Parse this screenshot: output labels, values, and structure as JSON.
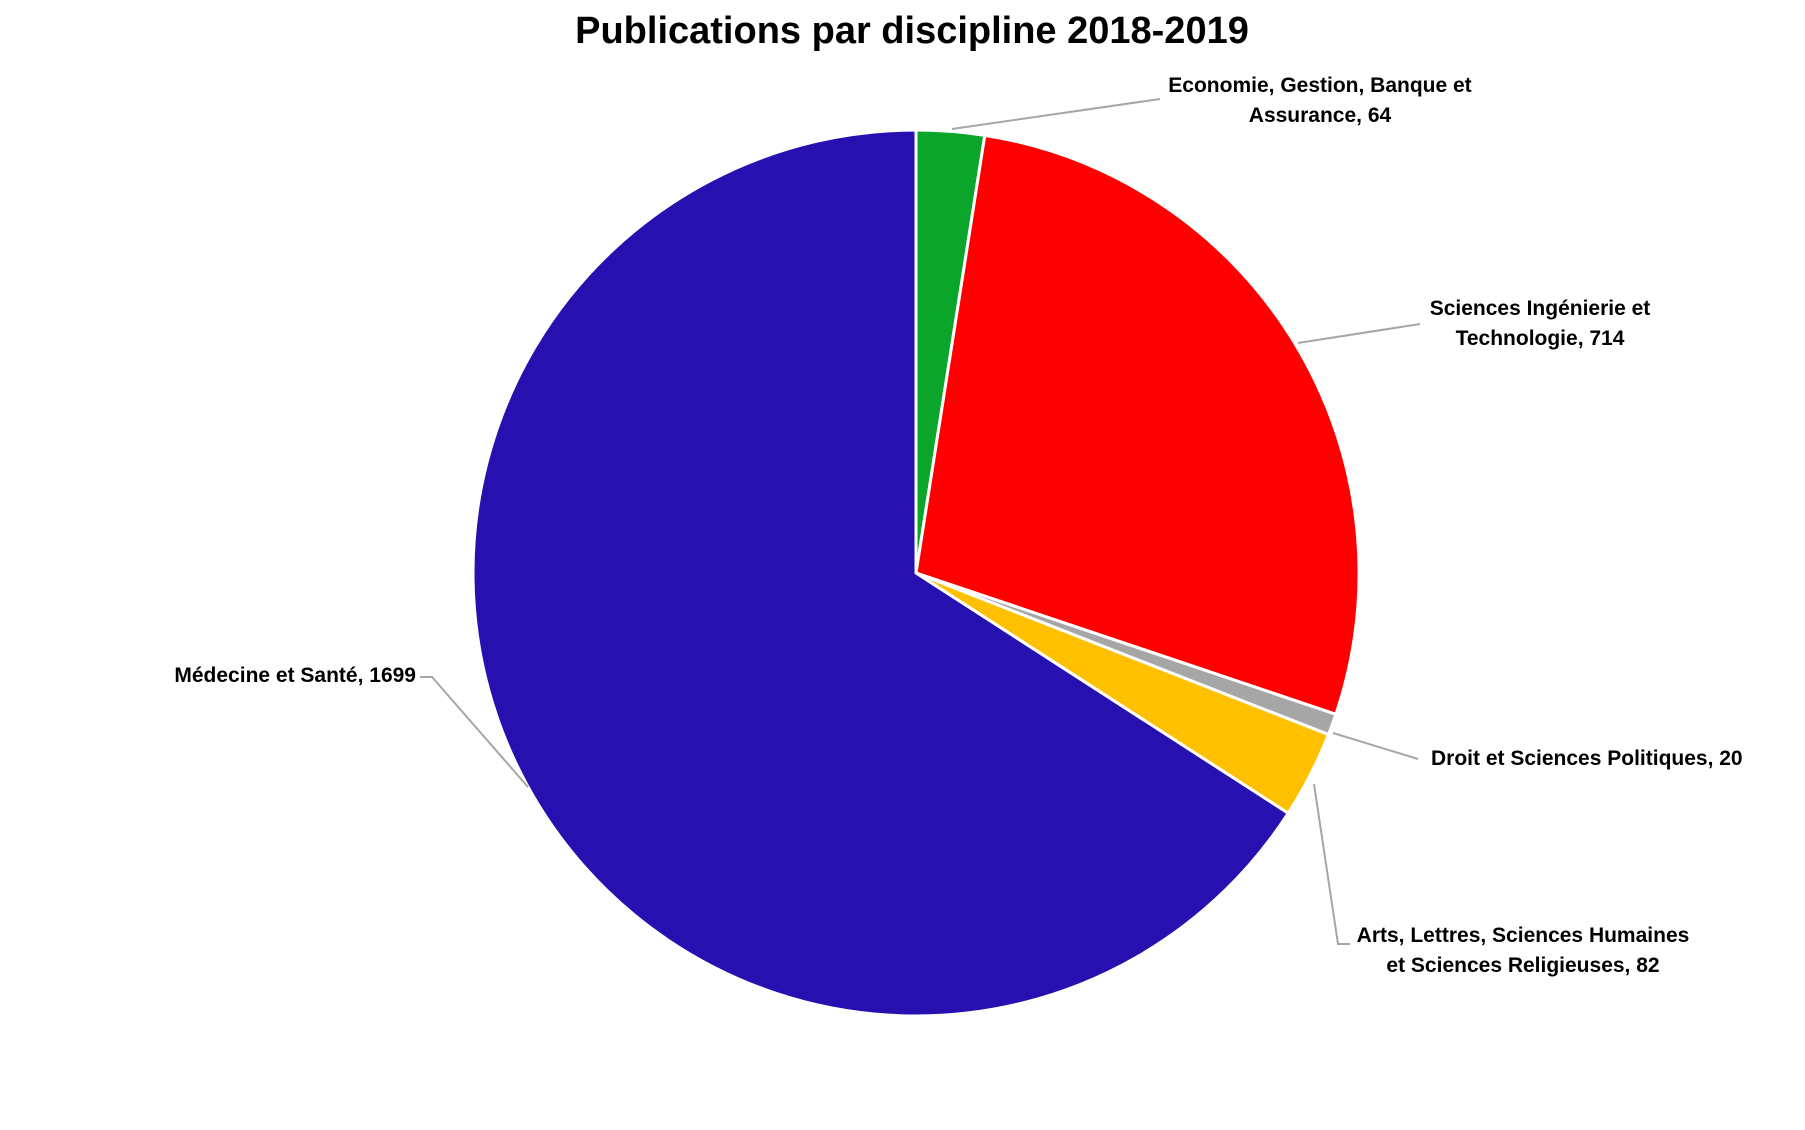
{
  "chart_data": {
    "type": "pie",
    "title": "Publications par discipline 2018-2019",
    "slices": [
      {
        "name": "Economie, Gestion, Banque et Assurance",
        "value": 64,
        "color": "#0ca52b",
        "label_lines": [
          "Economie, Gestion, Banque et",
          "Assurance, 64"
        ]
      },
      {
        "name": "Sciences Ingénierie et Technologie",
        "value": 714,
        "color": "#ff0000",
        "label_lines": [
          "Sciences Ingénierie et",
          "Technologie, 714"
        ]
      },
      {
        "name": "Droit et Sciences Politiques",
        "value": 20,
        "color": "#a6a6a6",
        "label_lines": [
          "Droit et Sciences Politiques, 20"
        ]
      },
      {
        "name": "Arts, Lettres, Sciences Humaines et Sciences Religieuses",
        "value": 82,
        "color": "#ffc000",
        "label_lines": [
          "Arts, Lettres, Sciences Humaines",
          "et Sciences Religieuses, 82"
        ]
      },
      {
        "name": "Médecine et Santé",
        "value": 1699,
        "color": "#2710b0",
        "label_lines": [
          "Médecine et Santé, 1699"
        ]
      }
    ],
    "start_angle": "12 o'clock",
    "direction": "clockwise",
    "legend": "none",
    "data_labels": "outside with leader lines"
  }
}
